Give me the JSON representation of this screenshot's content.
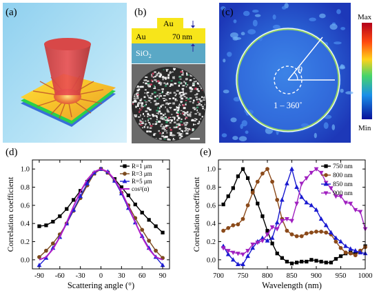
{
  "panels": {
    "a": {
      "label": "(a)"
    },
    "b": {
      "label": "(b)",
      "au_top": "Au",
      "au_left": "Au",
      "thickness": "70 nm",
      "substrate": "SiO",
      "substrate_sub": "2"
    },
    "c": {
      "label": "(c)",
      "cbar_max": "Max",
      "cbar_min": "Min",
      "theta": "θ",
      "range": "1 – 360˚"
    },
    "d": {
      "label": "(d)"
    },
    "e": {
      "label": "(e)"
    }
  },
  "chart_data": [
    {
      "id": "d",
      "type": "line",
      "xlabel": "Scattering angle (°)",
      "ylabel": "Correlation coefficient",
      "xlim": [
        -100,
        100
      ],
      "ylim": [
        -0.1,
        1.1
      ],
      "xticks": [
        -90,
        -60,
        -30,
        0,
        30,
        60,
        90
      ],
      "yticks": [
        0.0,
        0.2,
        0.4,
        0.6,
        0.8,
        1.0
      ],
      "legend_position": "top-right",
      "series": [
        {
          "name": "R=1  μm",
          "color": "#000000",
          "marker": "square",
          "x": [
            -90,
            -80,
            -70,
            -60,
            -50,
            -40,
            -30,
            -20,
            -10,
            0,
            10,
            20,
            30,
            40,
            50,
            60,
            70,
            80,
            90
          ],
          "y": [
            0.37,
            0.38,
            0.42,
            0.48,
            0.56,
            0.66,
            0.76,
            0.86,
            0.95,
            1.0,
            0.96,
            0.89,
            0.8,
            0.71,
            0.61,
            0.52,
            0.44,
            0.37,
            0.3
          ]
        },
        {
          "name": "R=3  μm",
          "color": "#7b4a1e",
          "marker": "circle",
          "x": [
            -90,
            -80,
            -70,
            -60,
            -50,
            -40,
            -30,
            -20,
            -10,
            0,
            10,
            20,
            30,
            40,
            50,
            60,
            70,
            80,
            90
          ],
          "y": [
            0.03,
            0.1,
            0.18,
            0.28,
            0.4,
            0.54,
            0.68,
            0.82,
            0.95,
            1.0,
            0.96,
            0.87,
            0.74,
            0.6,
            0.46,
            0.33,
            0.21,
            0.1,
            0.02
          ]
        },
        {
          "name": "R=5  μm",
          "color": "#1f1fd6",
          "marker": "triangle",
          "x": [
            -90,
            -80,
            -70,
            -60,
            -50,
            -40,
            -30,
            -20,
            -10,
            0,
            10,
            20,
            30,
            40,
            50,
            60,
            70,
            80,
            90
          ],
          "y": [
            -0.06,
            0.02,
            0.13,
            0.25,
            0.4,
            0.55,
            0.7,
            0.84,
            0.96,
            1.0,
            0.97,
            0.87,
            0.73,
            0.57,
            0.41,
            0.26,
            0.13,
            0.03,
            -0.06
          ]
        },
        {
          "name": "cos²(α)",
          "color": "#b01ec8",
          "marker": "none",
          "x": [
            -90,
            -80,
            -70,
            -60,
            -50,
            -40,
            -30,
            -20,
            -10,
            0,
            10,
            20,
            30,
            40,
            50,
            60,
            70,
            80,
            90
          ],
          "y": [
            0.0,
            0.03,
            0.117,
            0.25,
            0.413,
            0.587,
            0.75,
            0.883,
            0.97,
            1.0,
            0.97,
            0.883,
            0.75,
            0.587,
            0.413,
            0.25,
            0.117,
            0.03,
            0.0
          ]
        }
      ]
    },
    {
      "id": "e",
      "type": "line",
      "xlabel": "Wavelength (nm)",
      "ylabel": "Correlation coefficient",
      "xlim": [
        700,
        1000
      ],
      "ylim": [
        -0.1,
        1.1
      ],
      "xticks": [
        700,
        750,
        800,
        850,
        900,
        950,
        1000
      ],
      "yticks": [
        0.0,
        0.2,
        0.4,
        0.6,
        0.8,
        1.0
      ],
      "legend_position": "top-right",
      "series": [
        {
          "name": "750 nm",
          "color": "#000000",
          "marker": "square",
          "x": [
            710,
            720,
            730,
            740,
            750,
            760,
            770,
            780,
            790,
            800,
            810,
            820,
            830,
            840,
            850,
            860,
            870,
            880,
            890,
            900,
            910,
            920,
            930,
            940,
            950,
            960,
            970,
            980,
            990,
            1000
          ],
          "y": [
            0.61,
            0.7,
            0.79,
            0.92,
            1.0,
            0.9,
            0.76,
            0.62,
            0.48,
            0.32,
            0.18,
            0.07,
            0.02,
            -0.02,
            -0.04,
            -0.03,
            -0.02,
            -0.02,
            0.0,
            -0.01,
            -0.02,
            -0.03,
            -0.03,
            0.01,
            0.04,
            0.07,
            0.08,
            0.07,
            0.09,
            0.15
          ]
        },
        {
          "name": "800 nm",
          "color": "#8b4a1a",
          "marker": "circle",
          "x": [
            710,
            720,
            730,
            740,
            750,
            760,
            770,
            780,
            790,
            800,
            810,
            820,
            830,
            840,
            850,
            860,
            870,
            880,
            890,
            900,
            910,
            920,
            930,
            940,
            950,
            960,
            970,
            980,
            990,
            1000
          ],
          "y": [
            0.32,
            0.35,
            0.38,
            0.39,
            0.45,
            0.6,
            0.74,
            0.86,
            0.95,
            1.0,
            0.86,
            0.66,
            0.45,
            0.32,
            0.28,
            0.26,
            0.26,
            0.29,
            0.3,
            0.31,
            0.31,
            0.3,
            0.28,
            0.2,
            0.13,
            0.08,
            0.07,
            0.05,
            0.1,
            0.14
          ]
        },
        {
          "name": "850 nm",
          "color": "#1a1ad0",
          "marker": "triangle",
          "x": [
            710,
            720,
            730,
            740,
            750,
            760,
            770,
            780,
            790,
            800,
            810,
            820,
            830,
            840,
            850,
            860,
            870,
            880,
            890,
            900,
            910,
            920,
            930,
            940,
            950,
            960,
            970,
            980,
            990,
            1000
          ],
          "y": [
            0.15,
            0.06,
            0.0,
            -0.05,
            -0.05,
            0.04,
            0.13,
            0.2,
            0.24,
            0.21,
            0.24,
            0.41,
            0.66,
            0.84,
            1.0,
            0.8,
            0.69,
            0.63,
            0.6,
            0.55,
            0.45,
            0.38,
            0.3,
            0.24,
            0.2,
            0.15,
            0.12,
            0.1,
            0.08,
            0.07
          ]
        },
        {
          "name": "900 nm",
          "color": "#a020c0",
          "marker": "triangle-down",
          "x": [
            710,
            720,
            730,
            740,
            750,
            760,
            770,
            780,
            790,
            800,
            810,
            820,
            830,
            840,
            850,
            860,
            870,
            880,
            890,
            900,
            910,
            920,
            930,
            940,
            950,
            960,
            970,
            980,
            990,
            1000
          ],
          "y": [
            0.13,
            0.1,
            0.08,
            0.07,
            0.06,
            0.1,
            0.17,
            0.19,
            0.21,
            0.28,
            0.36,
            0.34,
            0.43,
            0.45,
            0.43,
            0.62,
            0.84,
            0.9,
            0.96,
            1.0,
            0.96,
            0.85,
            0.79,
            0.7,
            0.7,
            0.63,
            0.62,
            0.55,
            0.53,
            0.34
          ]
        }
      ]
    }
  ]
}
